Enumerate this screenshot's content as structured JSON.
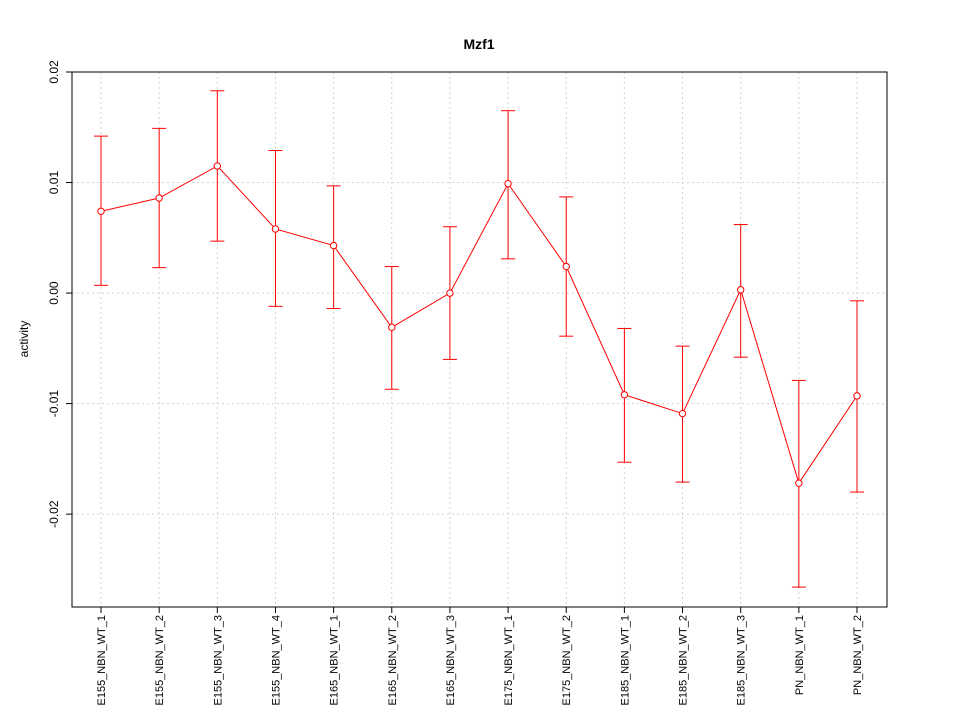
{
  "chart_data": {
    "type": "line",
    "title": "Mzf1",
    "xlabel": "",
    "ylabel": "activity",
    "ylim": [
      -0.0284,
      0.02
    ],
    "yticks": [
      -0.02,
      -0.01,
      0.0,
      0.01,
      0.02
    ],
    "ytick_labels": [
      "-0.02",
      "-0.01",
      "0.00",
      "0.01",
      "0.02"
    ],
    "grid": true,
    "color": "#ff0000",
    "categories": [
      "E155_NBN_WT_1",
      "E155_NBN_WT_2",
      "E155_NBN_WT_3",
      "E155_NBN_WT_4",
      "E165_NBN_WT_1",
      "E165_NBN_WT_2",
      "E165_NBN_WT_3",
      "E175_NBN_WT_1",
      "E175_NBN_WT_2",
      "E185_NBN_WT_1",
      "E185_NBN_WT_2",
      "E185_NBN_WT_3",
      "PN_NBN_WT_1",
      "PN_NBN_WT_2"
    ],
    "values": [
      0.0074,
      0.0086,
      0.0115,
      0.0058,
      0.0043,
      -0.0031,
      0.0,
      0.0099,
      0.0024,
      -0.0092,
      -0.0109,
      0.0003,
      -0.0172,
      -0.0093
    ],
    "upper": [
      0.0142,
      0.0149,
      0.0183,
      0.0129,
      0.0097,
      0.0024,
      0.006,
      0.0165,
      0.0087,
      -0.0032,
      -0.0048,
      0.0062,
      -0.0079,
      -0.0007
    ],
    "lower": [
      0.0007,
      0.0023,
      0.0047,
      -0.0012,
      -0.0014,
      -0.0087,
      -0.006,
      0.0031,
      -0.0039,
      -0.0153,
      -0.0171,
      -0.0058,
      -0.0266,
      -0.018
    ]
  }
}
